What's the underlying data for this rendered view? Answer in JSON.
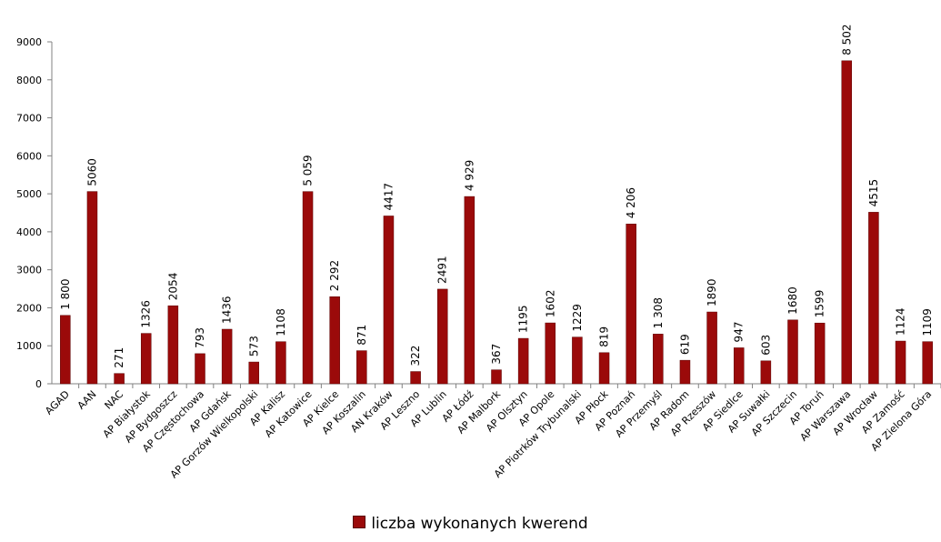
{
  "chart_data": {
    "type": "bar",
    "categories": [
      "AGAD",
      "AAN",
      "NAC",
      "AP Białystok",
      "AP Bydgoszcz",
      "AP Częstochowa",
      "AP Gdańsk",
      "AP Gorzów Wielkopolski",
      "AP Kalisz",
      "AP Katowice",
      "AP Kielce",
      "AP Koszalin",
      "AN Kraków",
      "AP Leszno",
      "AP Lublin",
      "AP Łódź",
      "AP Malbork",
      "AP Olsztyn",
      "AP Opole",
      "AP Piotrków Trybunalski",
      "AP Płock",
      "AP Poznań",
      "AP Przemyśl",
      "AP Radom",
      "AP Rzeszów",
      "AP Siedlce",
      "AP Suwałki",
      "AP Szczecin",
      "AP Toruń",
      "AP Warszawa",
      "AP Wrocław",
      "AP Zamość",
      "AP Zielona Góra"
    ],
    "values": [
      1800,
      5060,
      271,
      1326,
      2054,
      793,
      1436,
      573,
      1108,
      5059,
      2292,
      871,
      4417,
      322,
      2491,
      4929,
      367,
      1195,
      1602,
      1229,
      819,
      4206,
      1308,
      619,
      1890,
      947,
      603,
      1680,
      1599,
      8502,
      4515,
      1124,
      1109
    ],
    "data_labels": [
      "1 800",
      "5060",
      "271",
      "1326",
      "2054",
      "793",
      "1436",
      "573",
      "1108",
      "5 059",
      "2 292",
      "871",
      "4417",
      "322",
      "2491",
      "4 929",
      "367",
      "1195",
      "1602",
      "1229",
      "819",
      "4 206",
      "1 308",
      "619",
      "1890",
      "947",
      "603",
      "1680",
      "1599",
      "8 502",
      "4515",
      "1124",
      "1109"
    ],
    "y_ticks": [
      "0",
      "1000",
      "2000",
      "3000",
      "4000",
      "5000",
      "6000",
      "7000",
      "8000",
      "9000"
    ],
    "ylim": [
      0,
      9000
    ],
    "grid": false,
    "legend": {
      "position": "bottom",
      "label": "liczba wykonanych kwerend"
    },
    "colors": {
      "bar": "#9b0a0a",
      "axis": "#808080"
    }
  }
}
